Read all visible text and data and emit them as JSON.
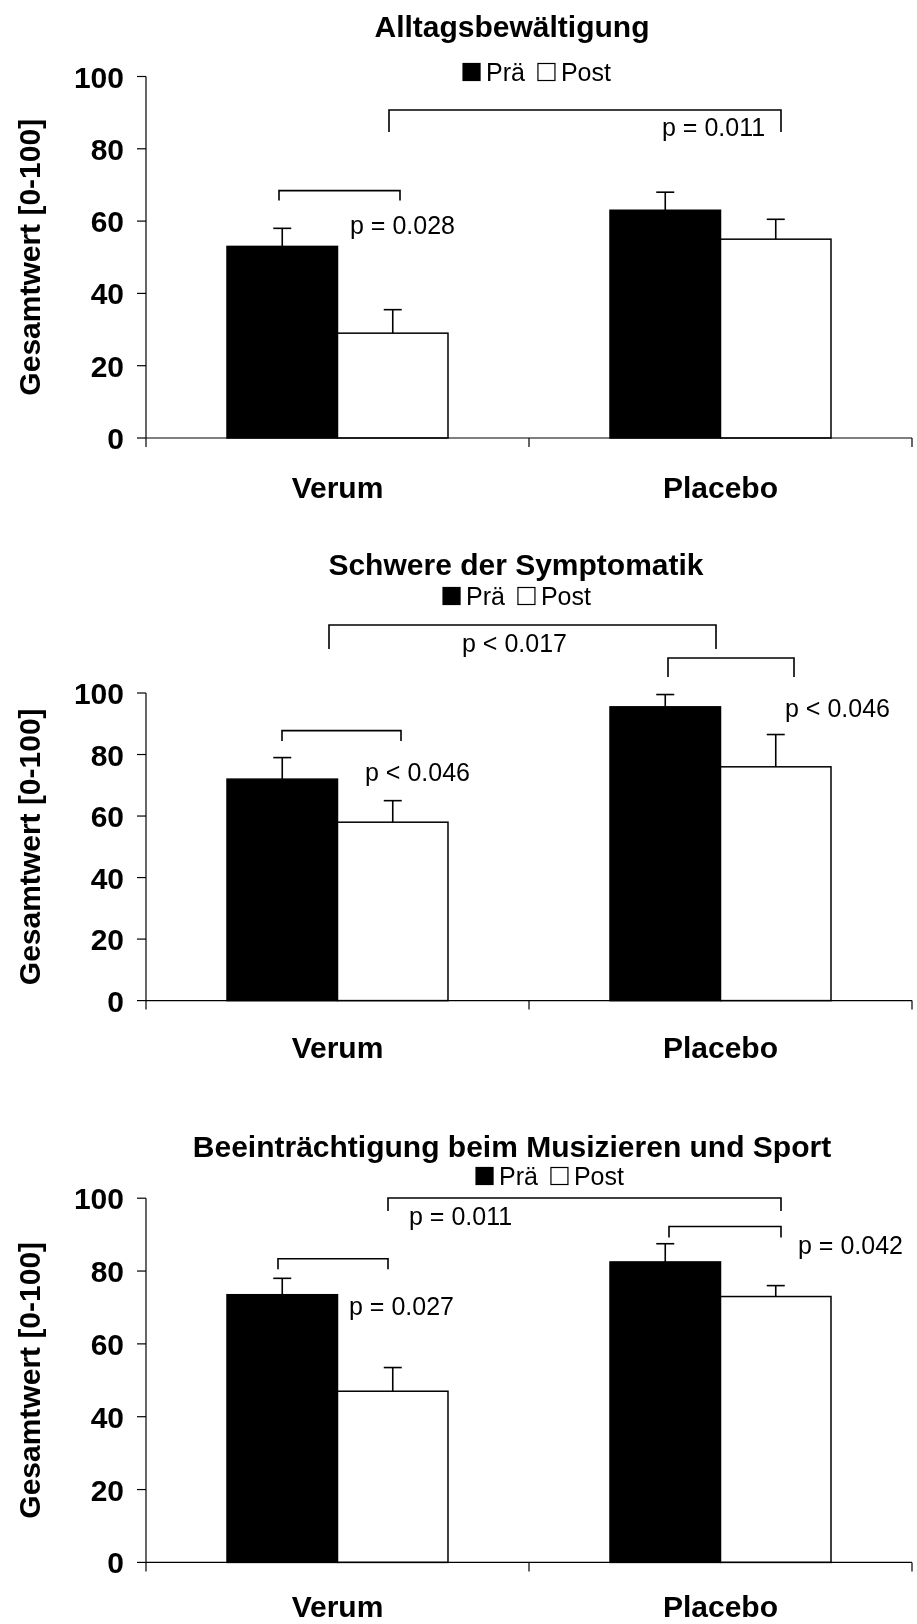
{
  "chart_data": [
    {
      "type": "bar",
      "title": "Alltagsbewältigung",
      "ylabel": "Gesamtwert [0-100]",
      "categories": [
        "Verum",
        "Placebo"
      ],
      "series": [
        {
          "name": "Prä",
          "color": "#000000",
          "values": [
            53,
            63
          ],
          "errors": [
            [
              53,
              58
            ],
            [
              63,
              68
            ]
          ]
        },
        {
          "name": "Post",
          "color": "#ffffff",
          "values": [
            29,
            55
          ],
          "errors": [
            [
              29,
              35.5
            ],
            [
              55,
              60.5
            ]
          ]
        }
      ],
      "ylim": [
        0,
        100
      ],
      "yticks": [
        0,
        20,
        40,
        60,
        80,
        100
      ],
      "legend": "top",
      "annotations": [
        "p = 0.011",
        "p = 0.028"
      ]
    },
    {
      "type": "bar",
      "title": "Schwere der Symptomatik",
      "ylabel": "Gesamtwert [0-100]",
      "categories": [
        "Verum",
        "Placebo"
      ],
      "series": [
        {
          "name": "Prä",
          "color": "#000000",
          "values": [
            72,
            95.5
          ],
          "errors": [
            [
              72,
              79
            ],
            [
              95.5,
              99.5
            ]
          ]
        },
        {
          "name": "Post",
          "color": "#ffffff",
          "values": [
            58,
            76
          ],
          "errors": [
            [
              58,
              65
            ],
            [
              76,
              86.5
            ]
          ]
        }
      ],
      "ylim": [
        0,
        100
      ],
      "yticks": [
        0,
        20,
        40,
        60,
        80,
        100
      ],
      "legend": "top",
      "annotations": [
        "p < 0.017",
        "p < 0.046",
        "p < 0.046"
      ]
    },
    {
      "type": "bar",
      "title": "Beeinträchtigung beim Musizieren und Sport",
      "ylabel": "Gesamtwert [0-100]",
      "categories": [
        "Verum",
        "Placebo"
      ],
      "series": [
        {
          "name": "Prä",
          "color": "#000000",
          "values": [
            73.5,
            82.5
          ],
          "errors": [
            [
              73.5,
              78
            ],
            [
              82.5,
              87.5
            ]
          ]
        },
        {
          "name": "Post",
          "color": "#ffffff",
          "values": [
            47,
            73
          ],
          "errors": [
            [
              47,
              53.5
            ],
            [
              73,
              76
            ]
          ]
        }
      ],
      "ylim": [
        0,
        100
      ],
      "yticks": [
        0,
        20,
        40,
        60,
        80,
        100
      ],
      "legend": "top",
      "annotations": [
        "p = 0.011",
        "p = 0.042",
        "p = 0.027"
      ]
    }
  ]
}
